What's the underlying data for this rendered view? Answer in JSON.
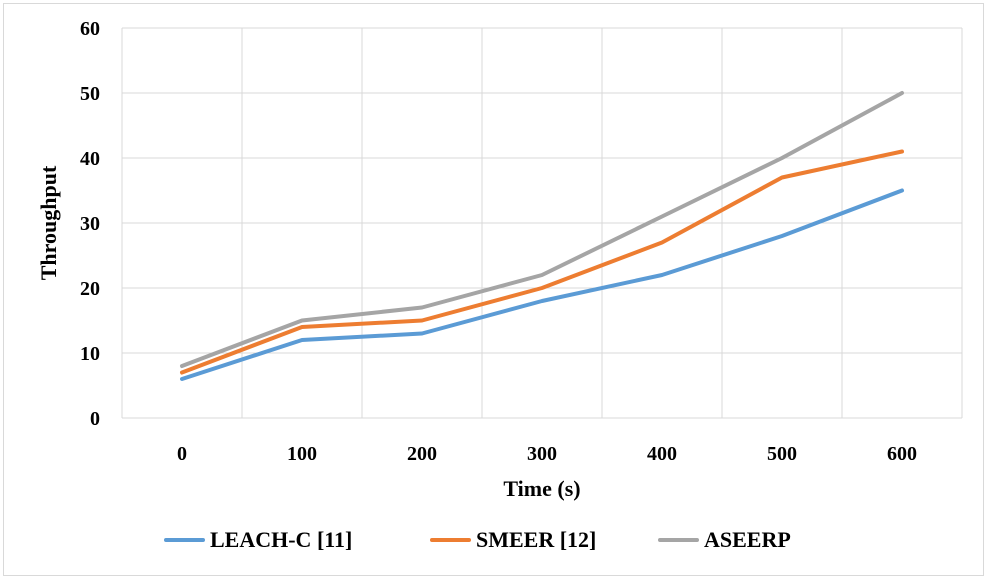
{
  "chart_data": {
    "type": "line",
    "title": "",
    "xlabel": "Time (s)",
    "ylabel": "Throughput",
    "x": [
      0,
      100,
      200,
      300,
      400,
      500,
      600
    ],
    "ylim": [
      0,
      60
    ],
    "yticks": [
      0,
      10,
      20,
      30,
      40,
      50,
      60
    ],
    "grid": true,
    "legend_position": "bottom",
    "series": [
      {
        "name": "LEACH-C [11]",
        "color": "#5b9bd5",
        "values": [
          6,
          12,
          13,
          18,
          22,
          28,
          35
        ]
      },
      {
        "name": "SMEER [12]",
        "color": "#ed7d31",
        "values": [
          7,
          14,
          15,
          20,
          27,
          37,
          41
        ]
      },
      {
        "name": "ASEERP",
        "color": "#a5a5a5",
        "values": [
          8,
          15,
          17,
          22,
          31,
          40,
          50
        ]
      }
    ]
  }
}
